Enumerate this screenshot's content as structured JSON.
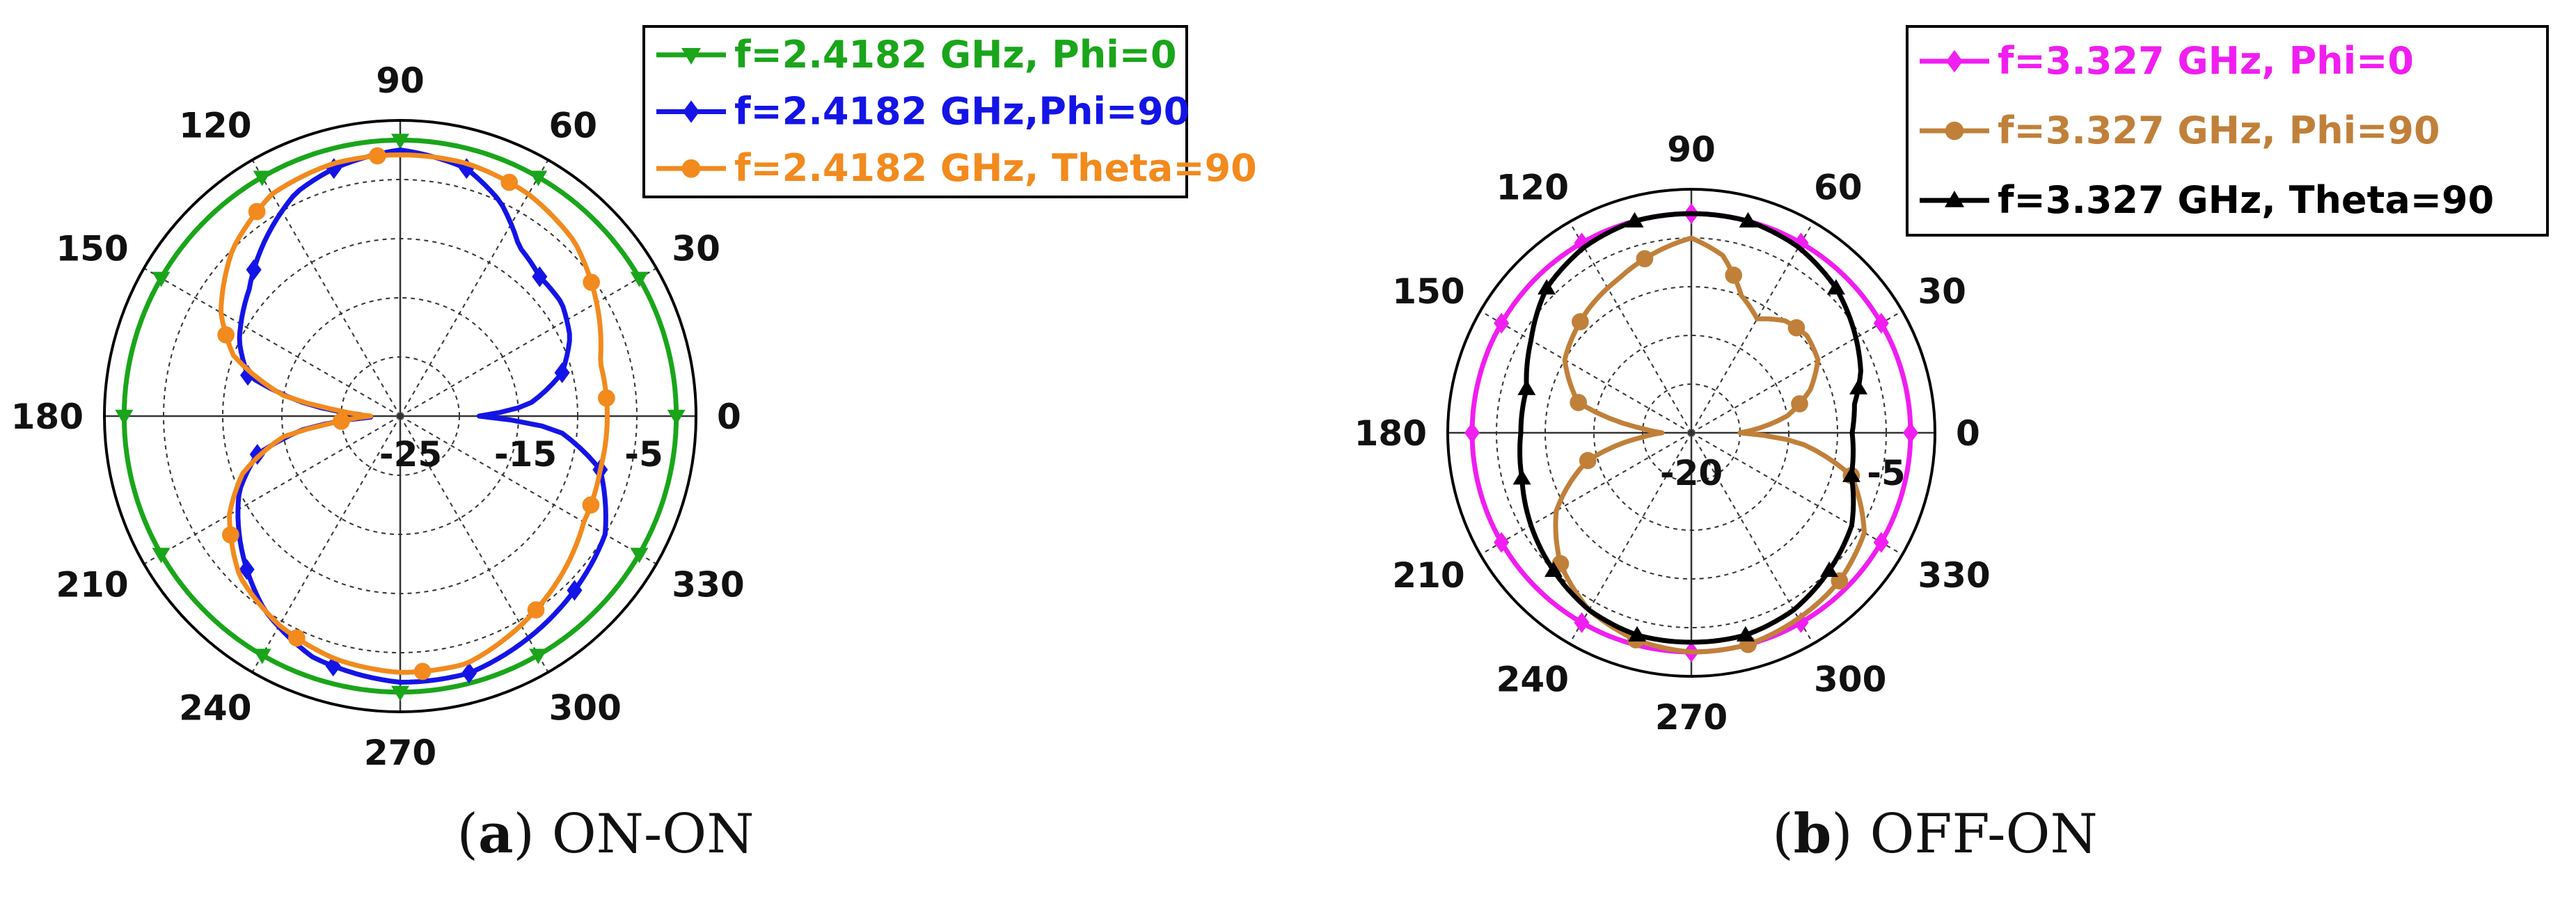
{
  "chart_data": [
    {
      "type": "polar",
      "caption": {
        "prefix": "(",
        "letter": "a",
        "suffix": ") ON-ON"
      },
      "angle_ticks": [
        "0",
        "30",
        "60",
        "90",
        "120",
        "150",
        "180",
        "210",
        "240",
        "270",
        "300",
        "330"
      ],
      "ring_labels": [
        {
          "value": -25,
          "text": "-25"
        },
        {
          "value": -15,
          "text": "-15"
        },
        {
          "value": -5,
          "text": "-5"
        }
      ],
      "rlim": [
        -30,
        0
      ],
      "grid": true,
      "legend_position": "top-right",
      "series": [
        {
          "name": "f=2.4182 GHz, Phi=0",
          "color": "#1aa51a",
          "marker": "triangle-down",
          "marker_step": 30,
          "marker_offset": 0,
          "points": [
            [
              0,
              -2
            ],
            [
              30,
              -2
            ],
            [
              60,
              -2
            ],
            [
              90,
              -2
            ],
            [
              120,
              -2
            ],
            [
              150,
              -2
            ],
            [
              180,
              -2
            ],
            [
              210,
              -2
            ],
            [
              240,
              -2
            ],
            [
              270,
              -2
            ],
            [
              300,
              -2
            ],
            [
              330,
              -2
            ]
          ]
        },
        {
          "name": "f=2.4182 GHz,Phi=90",
          "color": "#1414e6",
          "marker": "diamond",
          "marker_step": 30,
          "marker_offset": 15,
          "points": [
            [
              0,
              -22
            ],
            [
              5,
              -17
            ],
            [
              15,
              -13
            ],
            [
              25,
              -11
            ],
            [
              35,
              -10
            ],
            [
              45,
              -10
            ],
            [
              55,
              -9
            ],
            [
              65,
              -6
            ],
            [
              75,
              -4
            ],
            [
              90,
              -3
            ],
            [
              105,
              -4
            ],
            [
              115,
              -5
            ],
            [
              125,
              -7
            ],
            [
              140,
              -10
            ],
            [
              155,
              -12
            ],
            [
              165,
              -14
            ],
            [
              172,
              -20
            ],
            [
              178,
              -26
            ],
            [
              182,
              -27
            ],
            [
              188,
              -20
            ],
            [
              195,
              -15
            ],
            [
              205,
              -12
            ],
            [
              220,
              -9
            ],
            [
              235,
              -6
            ],
            [
              250,
              -4
            ],
            [
              270,
              -3
            ],
            [
              285,
              -3
            ],
            [
              300,
              -4
            ],
            [
              315,
              -5
            ],
            [
              330,
              -6
            ],
            [
              345,
              -9
            ],
            [
              355,
              -14
            ],
            [
              360,
              -22
            ]
          ]
        },
        {
          "name": "f=2.4182 GHz, Theta=90",
          "color": "#f28a1e",
          "marker": "circle",
          "marker_step": 30,
          "marker_offset": 5,
          "points": [
            [
              0,
              -9
            ],
            [
              15,
              -9
            ],
            [
              30,
              -7
            ],
            [
              45,
              -5
            ],
            [
              60,
              -4
            ],
            [
              75,
              -3.5
            ],
            [
              90,
              -3.5
            ],
            [
              105,
              -3.5
            ],
            [
              120,
              -4
            ],
            [
              135,
              -6
            ],
            [
              150,
              -9
            ],
            [
              160,
              -12
            ],
            [
              170,
              -18
            ],
            [
              175,
              -24
            ],
            [
              180,
              -27
            ],
            [
              185,
              -24
            ],
            [
              190,
              -18
            ],
            [
              200,
              -13
            ],
            [
              210,
              -10
            ],
            [
              225,
              -7
            ],
            [
              240,
              -5.5
            ],
            [
              255,
              -4.5
            ],
            [
              270,
              -4
            ],
            [
              285,
              -4
            ],
            [
              300,
              -5.5
            ],
            [
              315,
              -7
            ],
            [
              330,
              -8.5
            ],
            [
              345,
              -9
            ]
          ]
        }
      ]
    },
    {
      "type": "polar",
      "caption": {
        "prefix": "(",
        "letter": "b",
        "suffix": ") OFF-ON"
      },
      "angle_ticks": [
        "0",
        "30",
        "60",
        "90",
        "120",
        "150",
        "180",
        "210",
        "240",
        "270",
        "300",
        "330"
      ],
      "ring_labels": [
        {
          "value": -20,
          "text": "-20"
        },
        {
          "value": -5,
          "text": "-5"
        }
      ],
      "rlim": [
        -25,
        0
      ],
      "grid": true,
      "legend_position": "top-right",
      "series": [
        {
          "name": "f=3.327 GHz, Phi=0",
          "color": "#f01ef0",
          "marker": "diamond",
          "marker_step": 30,
          "marker_offset": 0,
          "points": [
            [
              0,
              -2.5
            ],
            [
              30,
              -2.5
            ],
            [
              60,
              -2.5
            ],
            [
              90,
              -2.5
            ],
            [
              120,
              -2.5
            ],
            [
              150,
              -2.5
            ],
            [
              180,
              -2.5
            ],
            [
              210,
              -2.5
            ],
            [
              240,
              -2.5
            ],
            [
              270,
              -2.5
            ],
            [
              300,
              -2.5
            ],
            [
              330,
              -2.5
            ]
          ]
        },
        {
          "name": "f=3.327 GHz, Phi=90",
          "color": "#c0803a",
          "marker": "circle",
          "marker_step": 30,
          "marker_offset": 15,
          "points": [
            [
              0,
              -20
            ],
            [
              10,
              -15
            ],
            [
              20,
              -12
            ],
            [
              30,
              -10
            ],
            [
              40,
              -9.5
            ],
            [
              50,
              -10
            ],
            [
              60,
              -11.5
            ],
            [
              70,
              -10
            ],
            [
              80,
              -6.5
            ],
            [
              90,
              -5
            ],
            [
              100,
              -6
            ],
            [
              115,
              -7.5
            ],
            [
              130,
              -8.5
            ],
            [
              150,
              -10
            ],
            [
              165,
              -13
            ],
            [
              175,
              -20
            ],
            [
              180,
              -22
            ],
            [
              185,
              -20
            ],
            [
              195,
              -14
            ],
            [
              210,
              -9
            ],
            [
              225,
              -6
            ],
            [
              240,
              -4
            ],
            [
              255,
              -3
            ],
            [
              270,
              -2.5
            ],
            [
              285,
              -2.5
            ],
            [
              300,
              -3
            ],
            [
              315,
              -3.5
            ],
            [
              330,
              -4.5
            ],
            [
              345,
              -8
            ],
            [
              355,
              -14
            ],
            [
              360,
              -20
            ]
          ]
        },
        {
          "name": "f=3.327 GHz, Theta=90",
          "color": "#000000",
          "marker": "triangle-up",
          "marker_step": 30,
          "marker_offset": 15,
          "points": [
            [
              0,
              -8.5
            ],
            [
              10,
              -8
            ],
            [
              20,
              -6.5
            ],
            [
              30,
              -5.5
            ],
            [
              45,
              -4
            ],
            [
              60,
              -3
            ],
            [
              75,
              -2.5
            ],
            [
              90,
              -2.5
            ],
            [
              105,
              -2.5
            ],
            [
              120,
              -3
            ],
            [
              135,
              -4
            ],
            [
              150,
              -6
            ],
            [
              165,
              -7.5
            ],
            [
              180,
              -7.5
            ],
            [
              195,
              -7
            ],
            [
              210,
              -6
            ],
            [
              225,
              -5
            ],
            [
              240,
              -4
            ],
            [
              255,
              -3.5
            ],
            [
              270,
              -3.5
            ],
            [
              285,
              -3.5
            ],
            [
              300,
              -4
            ],
            [
              315,
              -5
            ],
            [
              330,
              -6
            ],
            [
              345,
              -8
            ],
            [
              360,
              -8.5
            ]
          ]
        }
      ]
    }
  ]
}
